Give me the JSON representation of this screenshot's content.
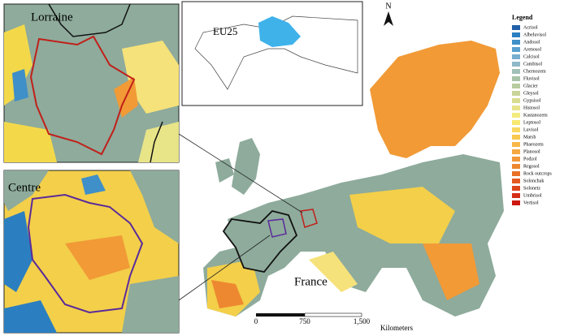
{
  "insets": [
    {
      "label": "Lorraine"
    },
    {
      "label": "Centre"
    }
  ],
  "world_inset": {
    "label": "EU25"
  },
  "north_arrow": "N",
  "map_label": "France",
  "legend": {
    "title": "Legend",
    "items": [
      {
        "name": "Acrisol",
        "color": "#1f5fa8"
      },
      {
        "name": "Albeluvisol",
        "color": "#2b7fc0"
      },
      {
        "name": "Andosol",
        "color": "#3f8fc8"
      },
      {
        "name": "Arenosol",
        "color": "#5aa0d0"
      },
      {
        "name": "Calcisol",
        "color": "#78aed0"
      },
      {
        "name": "Cambisol",
        "color": "#8fb8c8"
      },
      {
        "name": "Chernozem",
        "color": "#a0c0b8"
      },
      {
        "name": "Fluvisol",
        "color": "#a8c4a8"
      },
      {
        "name": "Glacier",
        "color": "#b8cca0"
      },
      {
        "name": "Gleysol",
        "color": "#c8d498"
      },
      {
        "name": "Gypsisol",
        "color": "#d8dc90"
      },
      {
        "name": "Histosol",
        "color": "#e8e488"
      },
      {
        "name": "Kastanozem",
        "color": "#f2ec80"
      },
      {
        "name": "Leptosol",
        "color": "#f8e870"
      },
      {
        "name": "Luvisol",
        "color": "#f8d860"
      },
      {
        "name": "Marsh",
        "color": "#f8c850"
      },
      {
        "name": "Phaeozem",
        "color": "#f8b848"
      },
      {
        "name": "Planosol",
        "color": "#f5a840"
      },
      {
        "name": "Podzol",
        "color": "#f29838"
      },
      {
        "name": "Regosol",
        "color": "#ee8830"
      },
      {
        "name": "Rock outcrops",
        "color": "#ea7028"
      },
      {
        "name": "Solonchak",
        "color": "#e45a22"
      },
      {
        "name": "Solonetz",
        "color": "#de441c"
      },
      {
        "name": "Umbrisol",
        "color": "#d62e16"
      },
      {
        "name": "Vertisol",
        "color": "#cc1810"
      }
    ]
  },
  "scale_bar": {
    "ticks": [
      "0",
      "750",
      "1,500"
    ],
    "unit": "Kilometers"
  }
}
